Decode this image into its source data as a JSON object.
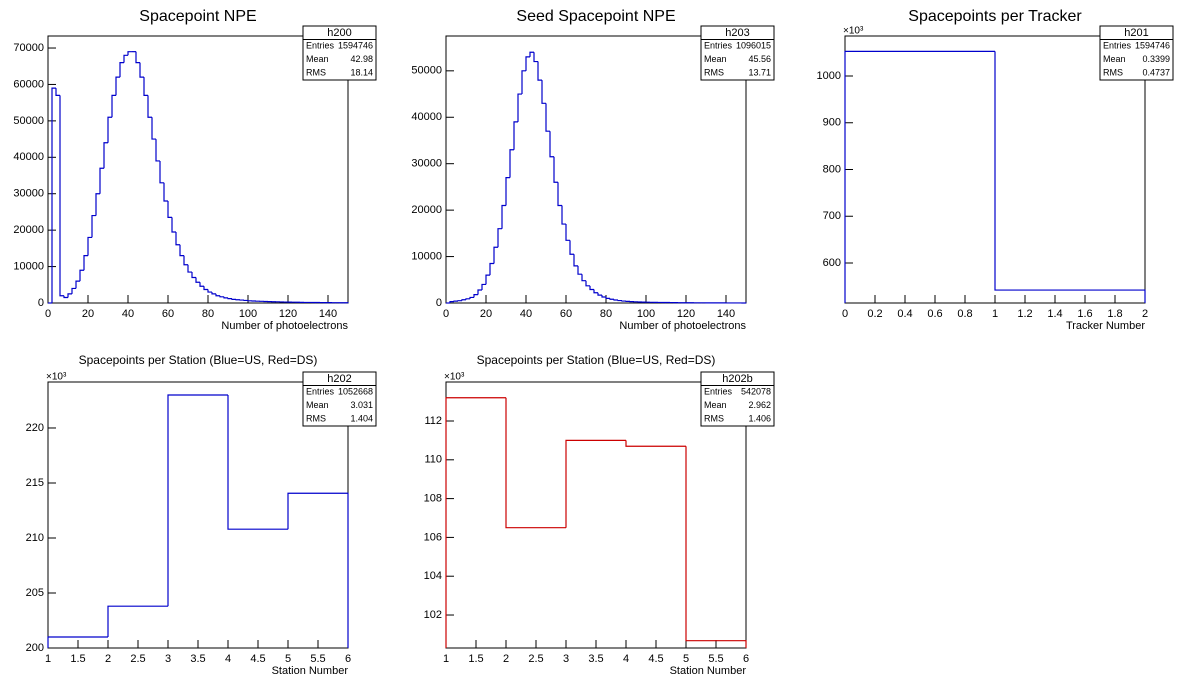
{
  "chart_data": [
    {
      "type": "histogram",
      "title": "Spacepoint NPE",
      "x_label": "Number of photoelectrons",
      "color": "#0000cc",
      "bins": [
        0,
        2,
        4,
        6,
        8,
        10,
        12,
        14,
        16,
        18,
        20,
        22,
        24,
        26,
        28,
        30,
        32,
        34,
        36,
        38,
        40,
        42,
        44,
        46,
        48,
        50,
        52,
        54,
        56,
        58,
        60,
        62,
        64,
        66,
        68,
        70,
        72,
        74,
        76,
        78,
        80,
        82,
        84,
        86,
        88,
        90,
        92,
        94,
        96,
        98,
        100,
        102,
        104,
        106,
        108,
        110,
        112,
        114,
        116,
        118,
        120,
        122,
        124,
        126,
        128,
        130,
        132,
        134,
        136,
        138,
        140,
        142,
        144,
        146,
        148,
        150
      ],
      "values": [
        0,
        59000,
        57000,
        2000,
        1500,
        2500,
        4000,
        6000,
        9000,
        13000,
        18000,
        24000,
        30000,
        37000,
        44000,
        51000,
        57000,
        62000,
        66000,
        68000,
        69000,
        69000,
        66000,
        62000,
        57000,
        51000,
        45000,
        39000,
        33000,
        28000,
        23500,
        19500,
        16000,
        13000,
        10500,
        8500,
        7000,
        5700,
        4600,
        3700,
        3000,
        2500,
        2000,
        1700,
        1400,
        1200,
        1000,
        900,
        800,
        700,
        600,
        550,
        500,
        460,
        420,
        380,
        350,
        320,
        290,
        260,
        240,
        220,
        200,
        180,
        160,
        150,
        140,
        130,
        120,
        110,
        100,
        90,
        80,
        70,
        60
      ],
      "xlim": [
        0,
        150
      ],
      "xticks": [
        0,
        20,
        40,
        60,
        80,
        100,
        120,
        140
      ],
      "ylim": [
        0,
        73300
      ],
      "yticks": [
        0,
        10000,
        20000,
        30000,
        40000,
        50000,
        60000,
        70000
      ],
      "stats": {
        "name": "h200",
        "rows": [
          {
            "label": "Entries",
            "value": 1594746
          },
          {
            "label": "Mean",
            "value": 42.98
          },
          {
            "label": "RMS",
            "value": 18.14
          }
        ]
      }
    },
    {
      "type": "histogram",
      "title": "Seed Spacepoint NPE",
      "x_label": "Number of photoelectrons",
      "color": "#0000cc",
      "bins": [
        0,
        2,
        4,
        6,
        8,
        10,
        12,
        14,
        16,
        18,
        20,
        22,
        24,
        26,
        28,
        30,
        32,
        34,
        36,
        38,
        40,
        42,
        44,
        46,
        48,
        50,
        52,
        54,
        56,
        58,
        60,
        62,
        64,
        66,
        68,
        70,
        72,
        74,
        76,
        78,
        80,
        82,
        84,
        86,
        88,
        90,
        92,
        94,
        96,
        98,
        100,
        102,
        104,
        106,
        108,
        110,
        112,
        114,
        116,
        118,
        120,
        122,
        124,
        126,
        128,
        130,
        132,
        134,
        136,
        138,
        140,
        142,
        144,
        146,
        148,
        150
      ],
      "values": [
        0,
        300,
        400,
        500,
        700,
        900,
        1200,
        1800,
        2800,
        4000,
        6000,
        8500,
        12000,
        16000,
        21000,
        27000,
        33000,
        39000,
        45000,
        50000,
        53000,
        54000,
        52000,
        48000,
        43000,
        37000,
        31500,
        26000,
        21000,
        17000,
        13500,
        10500,
        8000,
        6200,
        4800,
        3700,
        2900,
        2200,
        1700,
        1300,
        1000,
        800,
        650,
        520,
        420,
        350,
        300,
        260,
        220,
        190,
        170,
        150,
        130,
        120,
        110,
        100,
        90,
        80,
        70,
        60,
        55,
        50,
        45,
        40,
        35,
        30,
        28,
        25,
        22,
        20,
        18,
        15,
        12,
        10,
        8
      ],
      "xlim": [
        0,
        150
      ],
      "xticks": [
        0,
        20,
        40,
        60,
        80,
        100,
        120,
        140
      ],
      "ylim": [
        0,
        57500
      ],
      "yticks": [
        0,
        10000,
        20000,
        30000,
        40000,
        50000
      ],
      "stats": {
        "name": "h203",
        "rows": [
          {
            "label": "Entries",
            "value": 1096015
          },
          {
            "label": "Mean",
            "value": 45.56
          },
          {
            "label": "RMS",
            "value": 13.71
          }
        ]
      }
    },
    {
      "type": "histogram",
      "title": "Spacepoints per Tracker",
      "x_label": "Tracker Number",
      "y_multiplier": "×10³",
      "color": "#0000cc",
      "bins": [
        0,
        1,
        2
      ],
      "values": [
        1052668,
        542078
      ],
      "xlim": [
        0,
        2
      ],
      "xticks": [
        0,
        0.2,
        0.4,
        0.6,
        0.8,
        1,
        1.2,
        1.4,
        1.6,
        1.8,
        2
      ],
      "ylim": [
        514400,
        1085600
      ],
      "yticks": [
        {
          "value": 600000,
          "label": "600"
        },
        {
          "value": 700000,
          "label": "700"
        },
        {
          "value": 800000,
          "label": "800"
        },
        {
          "value": 900000,
          "label": "900"
        },
        {
          "value": 1000000,
          "label": "1000"
        }
      ],
      "stats": {
        "name": "h201",
        "rows": [
          {
            "label": "Entries",
            "value": 1594746
          },
          {
            "label": "Mean",
            "value": 0.3399
          },
          {
            "label": "RMS",
            "value": 0.4737
          }
        ]
      }
    },
    {
      "type": "histogram",
      "title": "Spacepoints per Station (Blue=US, Red=DS)",
      "x_label": "Station Number",
      "y_multiplier": "×10³",
      "color": "#0000cc",
      "bins": [
        1,
        2,
        3,
        4,
        5,
        6
      ],
      "values": [
        201000,
        203800,
        223000,
        210800,
        214068
      ],
      "xlim": [
        1,
        6
      ],
      "xticks": [
        1,
        1.5,
        2,
        2.5,
        3,
        3.5,
        4,
        4.5,
        5,
        5.5,
        6
      ],
      "ylim": [
        200000,
        224180
      ],
      "yticks": [
        {
          "value": 200000,
          "label": "200"
        },
        {
          "value": 205000,
          "label": "205"
        },
        {
          "value": 210000,
          "label": "210"
        },
        {
          "value": 215000,
          "label": "215"
        },
        {
          "value": 220000,
          "label": "220"
        }
      ],
      "stats": {
        "name": "h202",
        "rows": [
          {
            "label": "Entries",
            "value": 1052668
          },
          {
            "label": "Mean",
            "value": 3.031
          },
          {
            "label": "RMS",
            "value": 1.404
          }
        ]
      }
    },
    {
      "type": "histogram",
      "title": "Spacepoints per Station (Blue=US, Red=DS)",
      "x_label": "Station Number",
      "y_multiplier": "×10³",
      "color": "#cc0000",
      "bins": [
        1,
        2,
        3,
        4,
        5,
        6
      ],
      "values": [
        113200,
        106500,
        111000,
        110700,
        100678
      ],
      "xlim": [
        1,
        6
      ],
      "xticks": [
        1,
        1.5,
        2,
        2.5,
        3,
        3.5,
        4,
        4.5,
        5,
        5.5,
        6
      ],
      "ylim": [
        100300,
        114010
      ],
      "yticks": [
        {
          "value": 102000,
          "label": "102"
        },
        {
          "value": 104000,
          "label": "104"
        },
        {
          "value": 106000,
          "label": "106"
        },
        {
          "value": 108000,
          "label": "108"
        },
        {
          "value": 110000,
          "label": "110"
        },
        {
          "value": 112000,
          "label": "112"
        }
      ],
      "stats": {
        "name": "h202b",
        "rows": [
          {
            "label": "Entries",
            "value": 542078
          },
          {
            "label": "Mean",
            "value": 2.962
          },
          {
            "label": "RMS",
            "value": 1.406
          }
        ]
      }
    }
  ]
}
